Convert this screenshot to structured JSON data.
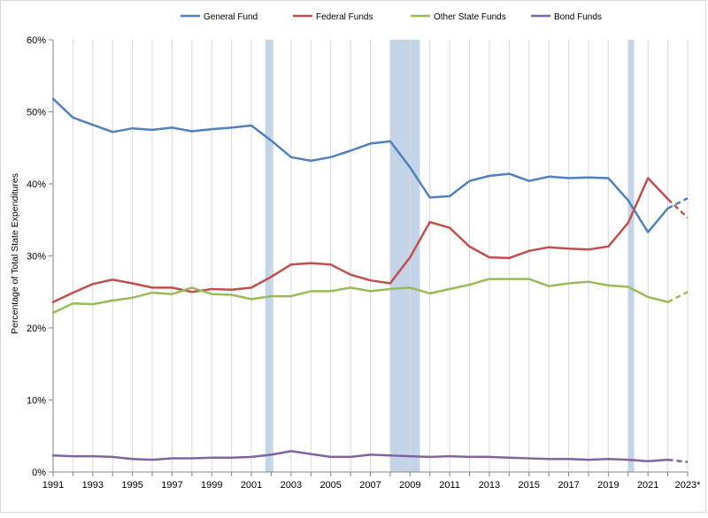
{
  "chart_data": {
    "type": "line",
    "title": "",
    "xlabel": "",
    "ylabel": "Percentage of Total State Expenditures",
    "xlim": [
      1991,
      2023
    ],
    "ylim": [
      0,
      60
    ],
    "yticks": [
      0,
      10,
      20,
      30,
      40,
      50,
      60
    ],
    "ytick_labels": [
      "0%",
      "10%",
      "20%",
      "30%",
      "40%",
      "50%",
      "60%"
    ],
    "xticks": [
      1991,
      1993,
      1995,
      1997,
      1999,
      2001,
      2003,
      2005,
      2007,
      2009,
      2011,
      2013,
      2015,
      2017,
      2019,
      2021,
      2023
    ],
    "xtick_labels": [
      "1991",
      "1993",
      "1995",
      "1997",
      "1999",
      "2001",
      "2003",
      "2005",
      "2007",
      "2009",
      "2011",
      "2013",
      "2015",
      "2017",
      "2019",
      "2021",
      "2023*"
    ],
    "grid": "vertical gridlines at each year",
    "legend": "top-center",
    "projected_from": 2022,
    "shaded_periods": [
      [
        2001.7,
        2002.1
      ],
      [
        2008.0,
        2009.5
      ],
      [
        2020.0,
        2020.3
      ]
    ],
    "shade_color": "#b8cce4",
    "x": [
      1991,
      1992,
      1993,
      1994,
      1995,
      1996,
      1997,
      1998,
      1999,
      2000,
      2001,
      2002,
      2003,
      2004,
      2005,
      2006,
      2007,
      2008,
      2009,
      2010,
      2011,
      2012,
      2013,
      2014,
      2015,
      2016,
      2017,
      2018,
      2019,
      2020,
      2021,
      2022,
      2023
    ],
    "series": [
      {
        "name": "General Fund",
        "color": "#4f81bd",
        "values": [
          51.8,
          49.2,
          48.2,
          47.2,
          47.7,
          47.5,
          47.8,
          47.3,
          47.6,
          47.8,
          48.1,
          46.0,
          43.7,
          43.2,
          43.7,
          44.6,
          45.6,
          45.9,
          42.3,
          38.1,
          38.3,
          40.4,
          41.1,
          41.4,
          40.4,
          41.0,
          40.8,
          40.9,
          40.8,
          37.7,
          33.3,
          36.6,
          38.0
        ]
      },
      {
        "name": "Federal Funds",
        "color": "#c0504d",
        "values": [
          23.6,
          24.9,
          26.1,
          26.7,
          26.2,
          25.6,
          25.6,
          25.0,
          25.4,
          25.3,
          25.6,
          27.1,
          28.8,
          29.0,
          28.8,
          27.4,
          26.6,
          26.2,
          29.8,
          34.7,
          33.9,
          31.3,
          29.8,
          29.7,
          30.7,
          31.2,
          31.0,
          30.9,
          31.3,
          34.6,
          40.8,
          37.9,
          35.3
        ]
      },
      {
        "name": "Other State Funds",
        "color": "#9bbb59",
        "values": [
          22.1,
          23.4,
          23.3,
          23.8,
          24.2,
          24.9,
          24.7,
          25.6,
          24.7,
          24.6,
          24.0,
          24.4,
          24.4,
          25.1,
          25.1,
          25.6,
          25.1,
          25.4,
          25.6,
          24.8,
          25.4,
          26.0,
          26.8,
          26.8,
          26.8,
          25.8,
          26.2,
          26.4,
          25.9,
          25.7,
          24.3,
          23.6,
          25.0
        ]
      },
      {
        "name": "Bond Funds",
        "color": "#8064a2",
        "values": [
          2.3,
          2.2,
          2.2,
          2.1,
          1.8,
          1.7,
          1.9,
          1.9,
          2.0,
          2.0,
          2.1,
          2.4,
          2.9,
          2.5,
          2.1,
          2.1,
          2.4,
          2.3,
          2.2,
          2.1,
          2.2,
          2.1,
          2.1,
          2.0,
          1.9,
          1.8,
          1.8,
          1.7,
          1.8,
          1.7,
          1.5,
          1.7,
          1.4
        ]
      }
    ]
  }
}
